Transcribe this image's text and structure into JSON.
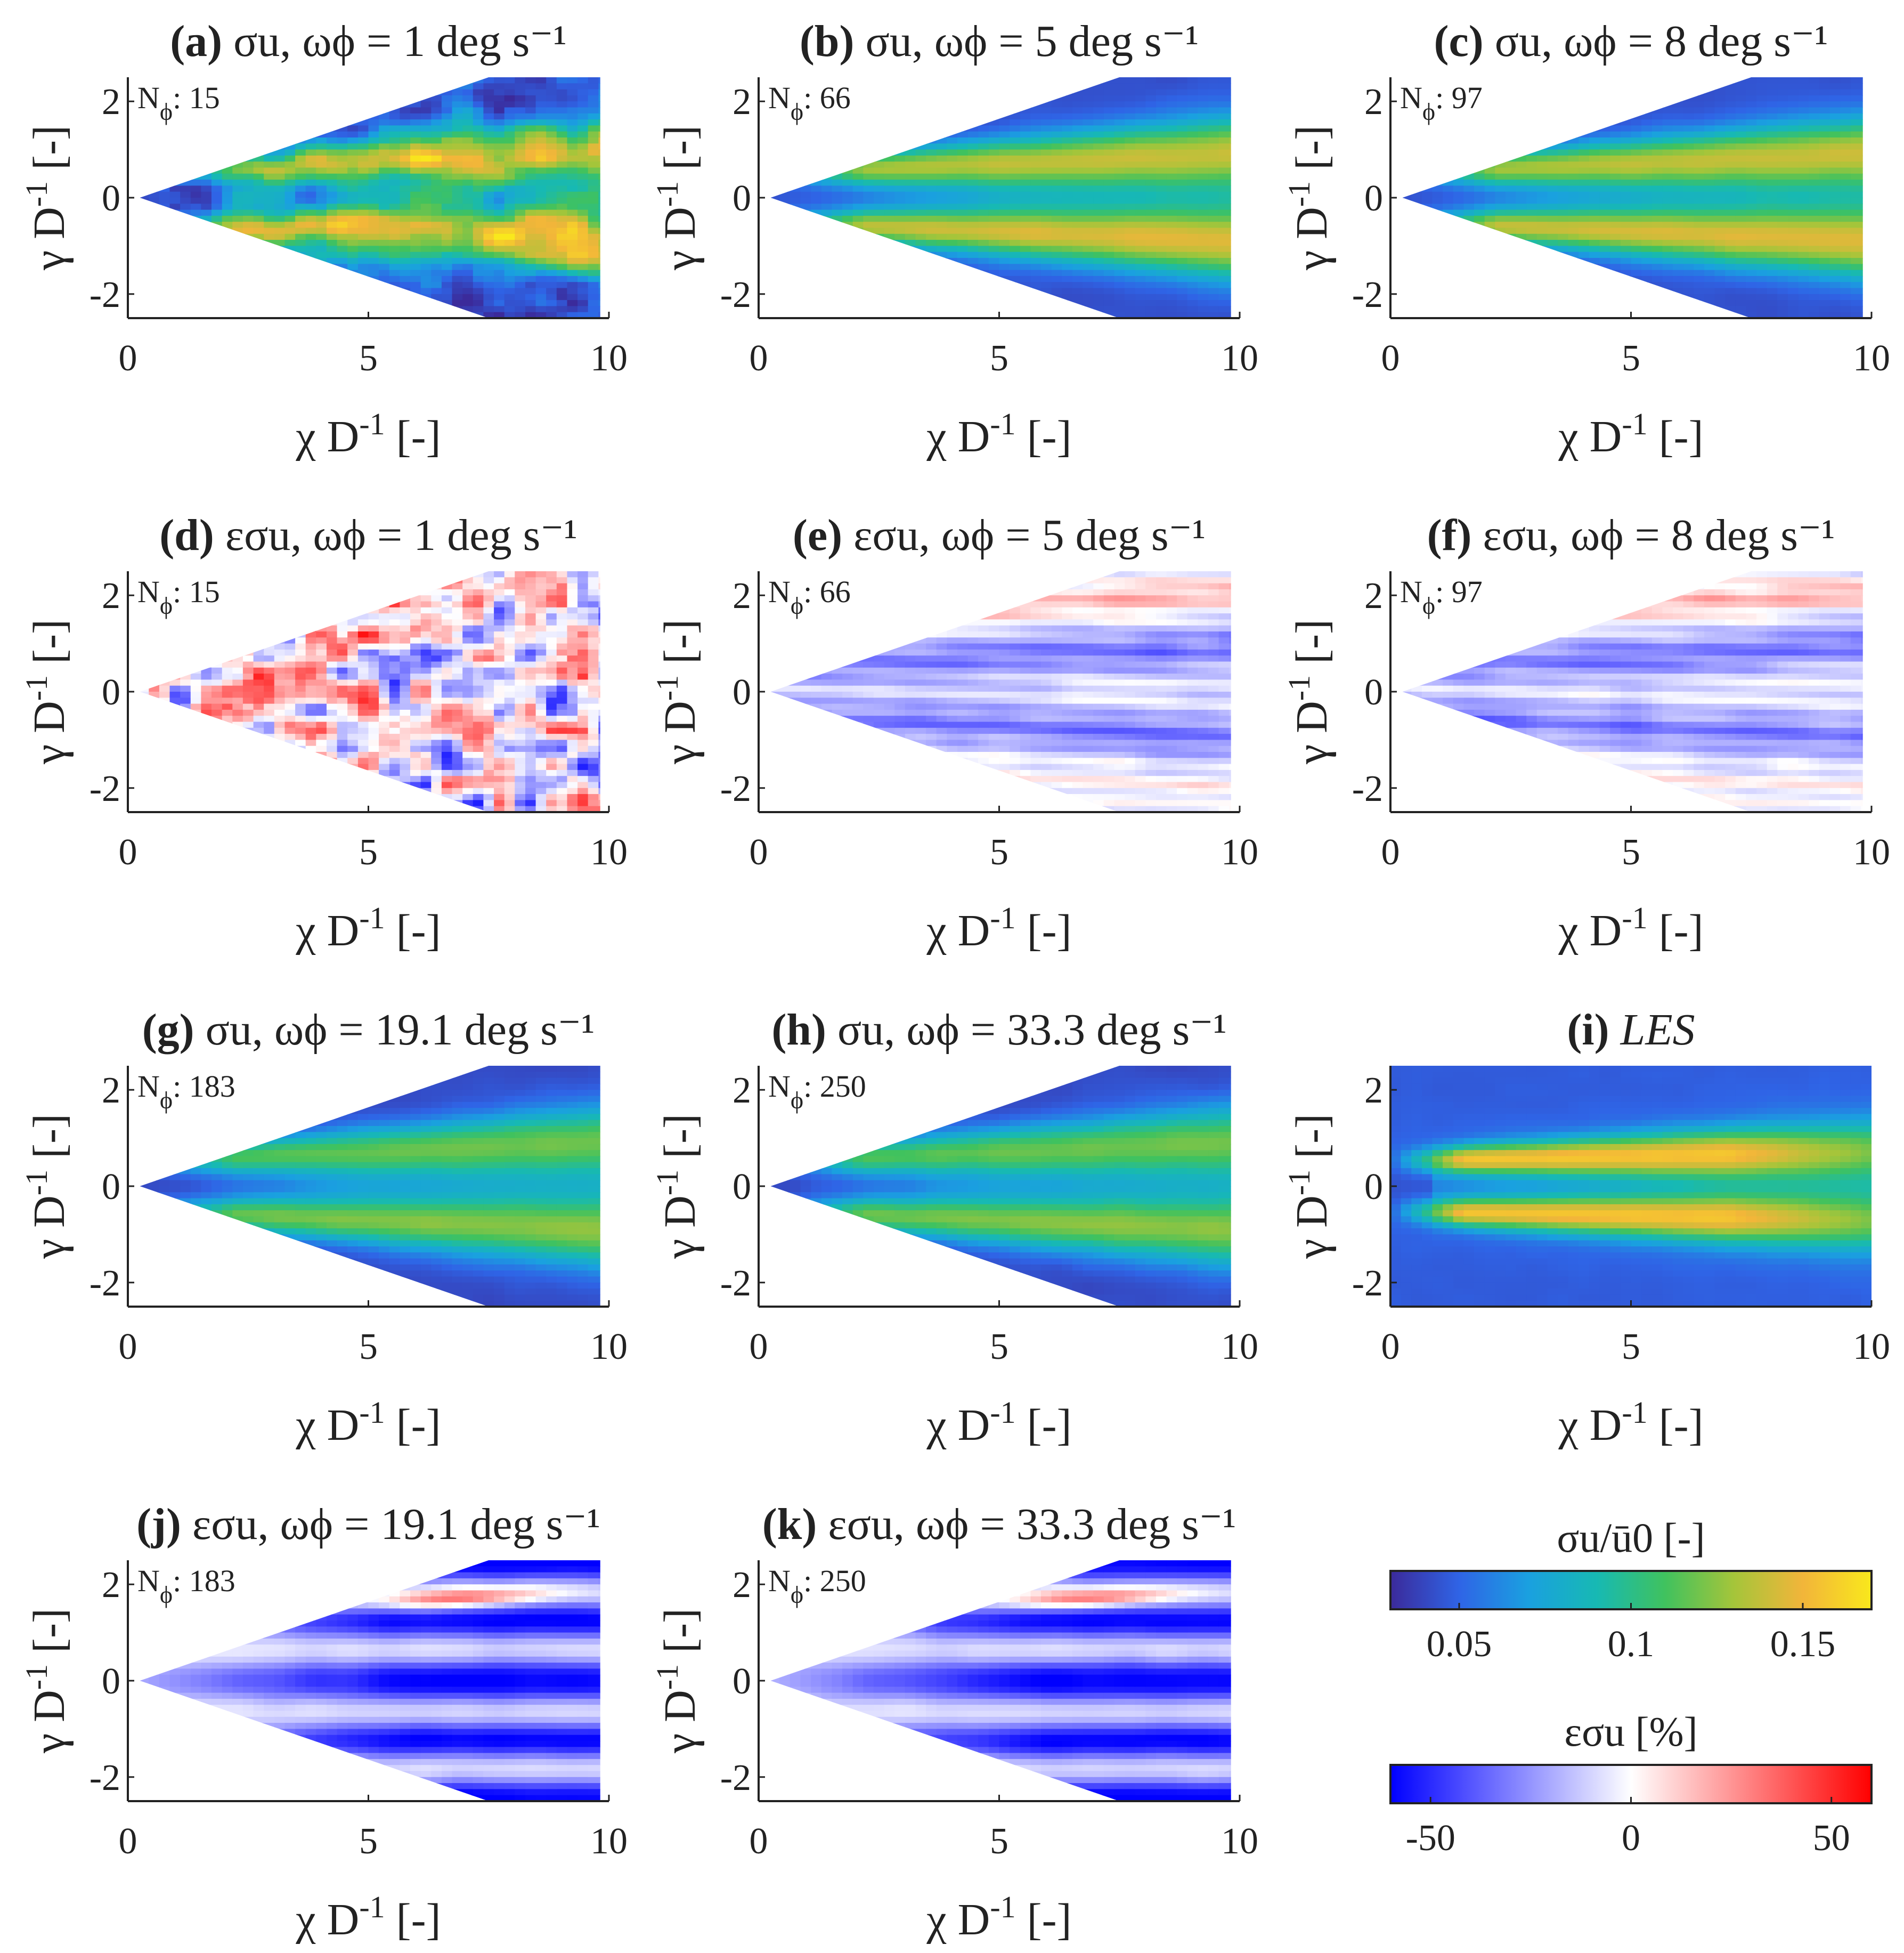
{
  "figure": {
    "xlabel_main": "χ D",
    "xlabel_sup": "-1",
    "xlabel_unit": "[-]",
    "ylabel_main": "γ D",
    "ylabel_sup": "-1",
    "ylabel_unit": "[-]",
    "n_prefix": "N",
    "n_sub": "ϕ",
    "colormap_sigma": [
      "#3b2a9a",
      "#2f64e6",
      "#1aa0e0",
      "#17b9b3",
      "#40c25e",
      "#a5c53a",
      "#f2b53a",
      "#f9e81c"
    ],
    "colormap_eps": [
      "#0000ff",
      "#ffffff",
      "#ff0000"
    ]
  },
  "chart_data": [
    {
      "id": "a",
      "type": "heatmap",
      "label": "(a)",
      "title": "σu,  ωϕ = 1 deg s⁻¹",
      "quantity": "sigma",
      "omega": "1",
      "n": "15",
      "domain": "cone",
      "pattern": "noisy-sigma",
      "xlim": [
        0,
        10
      ],
      "ylim": [
        -2.5,
        2.5
      ],
      "xticks": [
        "0",
        "5",
        "10"
      ],
      "yticks": [
        "2",
        "0",
        "-2"
      ]
    },
    {
      "id": "b",
      "type": "heatmap",
      "label": "(b)",
      "title": "σu,  ωϕ = 5 deg s⁻¹",
      "quantity": "sigma",
      "omega": "5",
      "n": "66",
      "domain": "cone",
      "pattern": "smooth-sigma",
      "xlim": [
        0,
        10
      ],
      "ylim": [
        -2.5,
        2.5
      ],
      "xticks": [
        "0",
        "5",
        "10"
      ],
      "yticks": [
        "2",
        "0",
        "-2"
      ]
    },
    {
      "id": "c",
      "type": "heatmap",
      "label": "(c)",
      "title": "σu,  ωϕ = 8 deg s⁻¹",
      "quantity": "sigma",
      "omega": "8",
      "n": "97",
      "domain": "cone",
      "pattern": "smooth-sigma",
      "xlim": [
        0,
        10
      ],
      "ylim": [
        -2.5,
        2.5
      ],
      "xticks": [
        "0",
        "5",
        "10"
      ],
      "yticks": [
        "2",
        "0",
        "-2"
      ]
    },
    {
      "id": "d",
      "type": "heatmap",
      "label": "(d)",
      "title": "εσu,  ωϕ = 1 deg s⁻¹",
      "quantity": "error",
      "omega": "1",
      "n": "15",
      "domain": "cone",
      "pattern": "noisy-error",
      "xlim": [
        0,
        10
      ],
      "ylim": [
        -2.5,
        2.5
      ],
      "xticks": [
        "0",
        "5",
        "10"
      ],
      "yticks": [
        "2",
        "0",
        "-2"
      ]
    },
    {
      "id": "e",
      "type": "heatmap",
      "label": "(e)",
      "title": "εσu,  ωϕ = 5 deg s⁻¹",
      "quantity": "error",
      "omega": "5",
      "n": "66",
      "domain": "cone",
      "pattern": "light-error",
      "xlim": [
        0,
        10
      ],
      "ylim": [
        -2.5,
        2.5
      ],
      "xticks": [
        "0",
        "5",
        "10"
      ],
      "yticks": [
        "2",
        "0",
        "-2"
      ]
    },
    {
      "id": "f",
      "type": "heatmap",
      "label": "(f)",
      "title": "εσu,  ωϕ = 8 deg s⁻¹",
      "quantity": "error",
      "omega": "8",
      "n": "97",
      "domain": "cone",
      "pattern": "light-error",
      "xlim": [
        0,
        10
      ],
      "ylim": [
        -2.5,
        2.5
      ],
      "xticks": [
        "0",
        "5",
        "10"
      ],
      "yticks": [
        "2",
        "0",
        "-2"
      ]
    },
    {
      "id": "g",
      "type": "heatmap",
      "label": "(g)",
      "title": "σu,  ωϕ = 19.1 deg s⁻¹",
      "quantity": "sigma",
      "omega": "19.1",
      "n": "183",
      "domain": "cone",
      "pattern": "low-sigma",
      "xlim": [
        0,
        10
      ],
      "ylim": [
        -2.5,
        2.5
      ],
      "xticks": [
        "0",
        "5",
        "10"
      ],
      "yticks": [
        "2",
        "0",
        "-2"
      ]
    },
    {
      "id": "h",
      "type": "heatmap",
      "label": "(h)",
      "title": "σu,  ωϕ = 33.3 deg s⁻¹",
      "quantity": "sigma",
      "omega": "33.3",
      "n": "250",
      "domain": "cone",
      "pattern": "low-sigma",
      "xlim": [
        0,
        10
      ],
      "ylim": [
        -2.5,
        2.5
      ],
      "xticks": [
        "0",
        "5",
        "10"
      ],
      "yticks": [
        "2",
        "0",
        "-2"
      ]
    },
    {
      "id": "i",
      "type": "heatmap",
      "label": "(i)",
      "title": "LES",
      "quantity": "sigma",
      "omega": "",
      "n": "",
      "domain": "rect",
      "pattern": "les",
      "xlim": [
        0,
        10
      ],
      "ylim": [
        -2.5,
        2.5
      ],
      "xticks": [
        "0",
        "5",
        "10"
      ],
      "yticks": [
        "2",
        "0",
        "-2"
      ]
    },
    {
      "id": "j",
      "type": "heatmap",
      "label": "(j)",
      "title": "εσu,  ωϕ = 19.1 deg s⁻¹",
      "quantity": "error",
      "omega": "19.1",
      "n": "183",
      "domain": "cone",
      "pattern": "strong-error",
      "xlim": [
        0,
        10
      ],
      "ylim": [
        -2.5,
        2.5
      ],
      "xticks": [
        "0",
        "5",
        "10"
      ],
      "yticks": [
        "2",
        "0",
        "-2"
      ]
    },
    {
      "id": "k",
      "type": "heatmap",
      "label": "(k)",
      "title": "εσu,  ωϕ = 33.3 deg s⁻¹",
      "quantity": "error",
      "omega": "33.3",
      "n": "250",
      "domain": "cone",
      "pattern": "strong-error",
      "xlim": [
        0,
        10
      ],
      "ylim": [
        -2.5,
        2.5
      ],
      "xticks": [
        "0",
        "5",
        "10"
      ],
      "yticks": [
        "2",
        "0",
        "-2"
      ]
    }
  ],
  "colorbars": [
    {
      "id": "sigma",
      "title": "σu/ū0 [-]",
      "min": 0.03,
      "max": 0.17,
      "ticks": [
        "0.05",
        "0.1",
        "0.15"
      ],
      "tick_values": [
        0.05,
        0.1,
        0.15
      ]
    },
    {
      "id": "error",
      "title": "εσu [%]",
      "min": -60,
      "max": 60,
      "ticks": [
        "-50",
        "0",
        "50"
      ],
      "tick_values": [
        -50,
        0,
        50
      ]
    }
  ]
}
